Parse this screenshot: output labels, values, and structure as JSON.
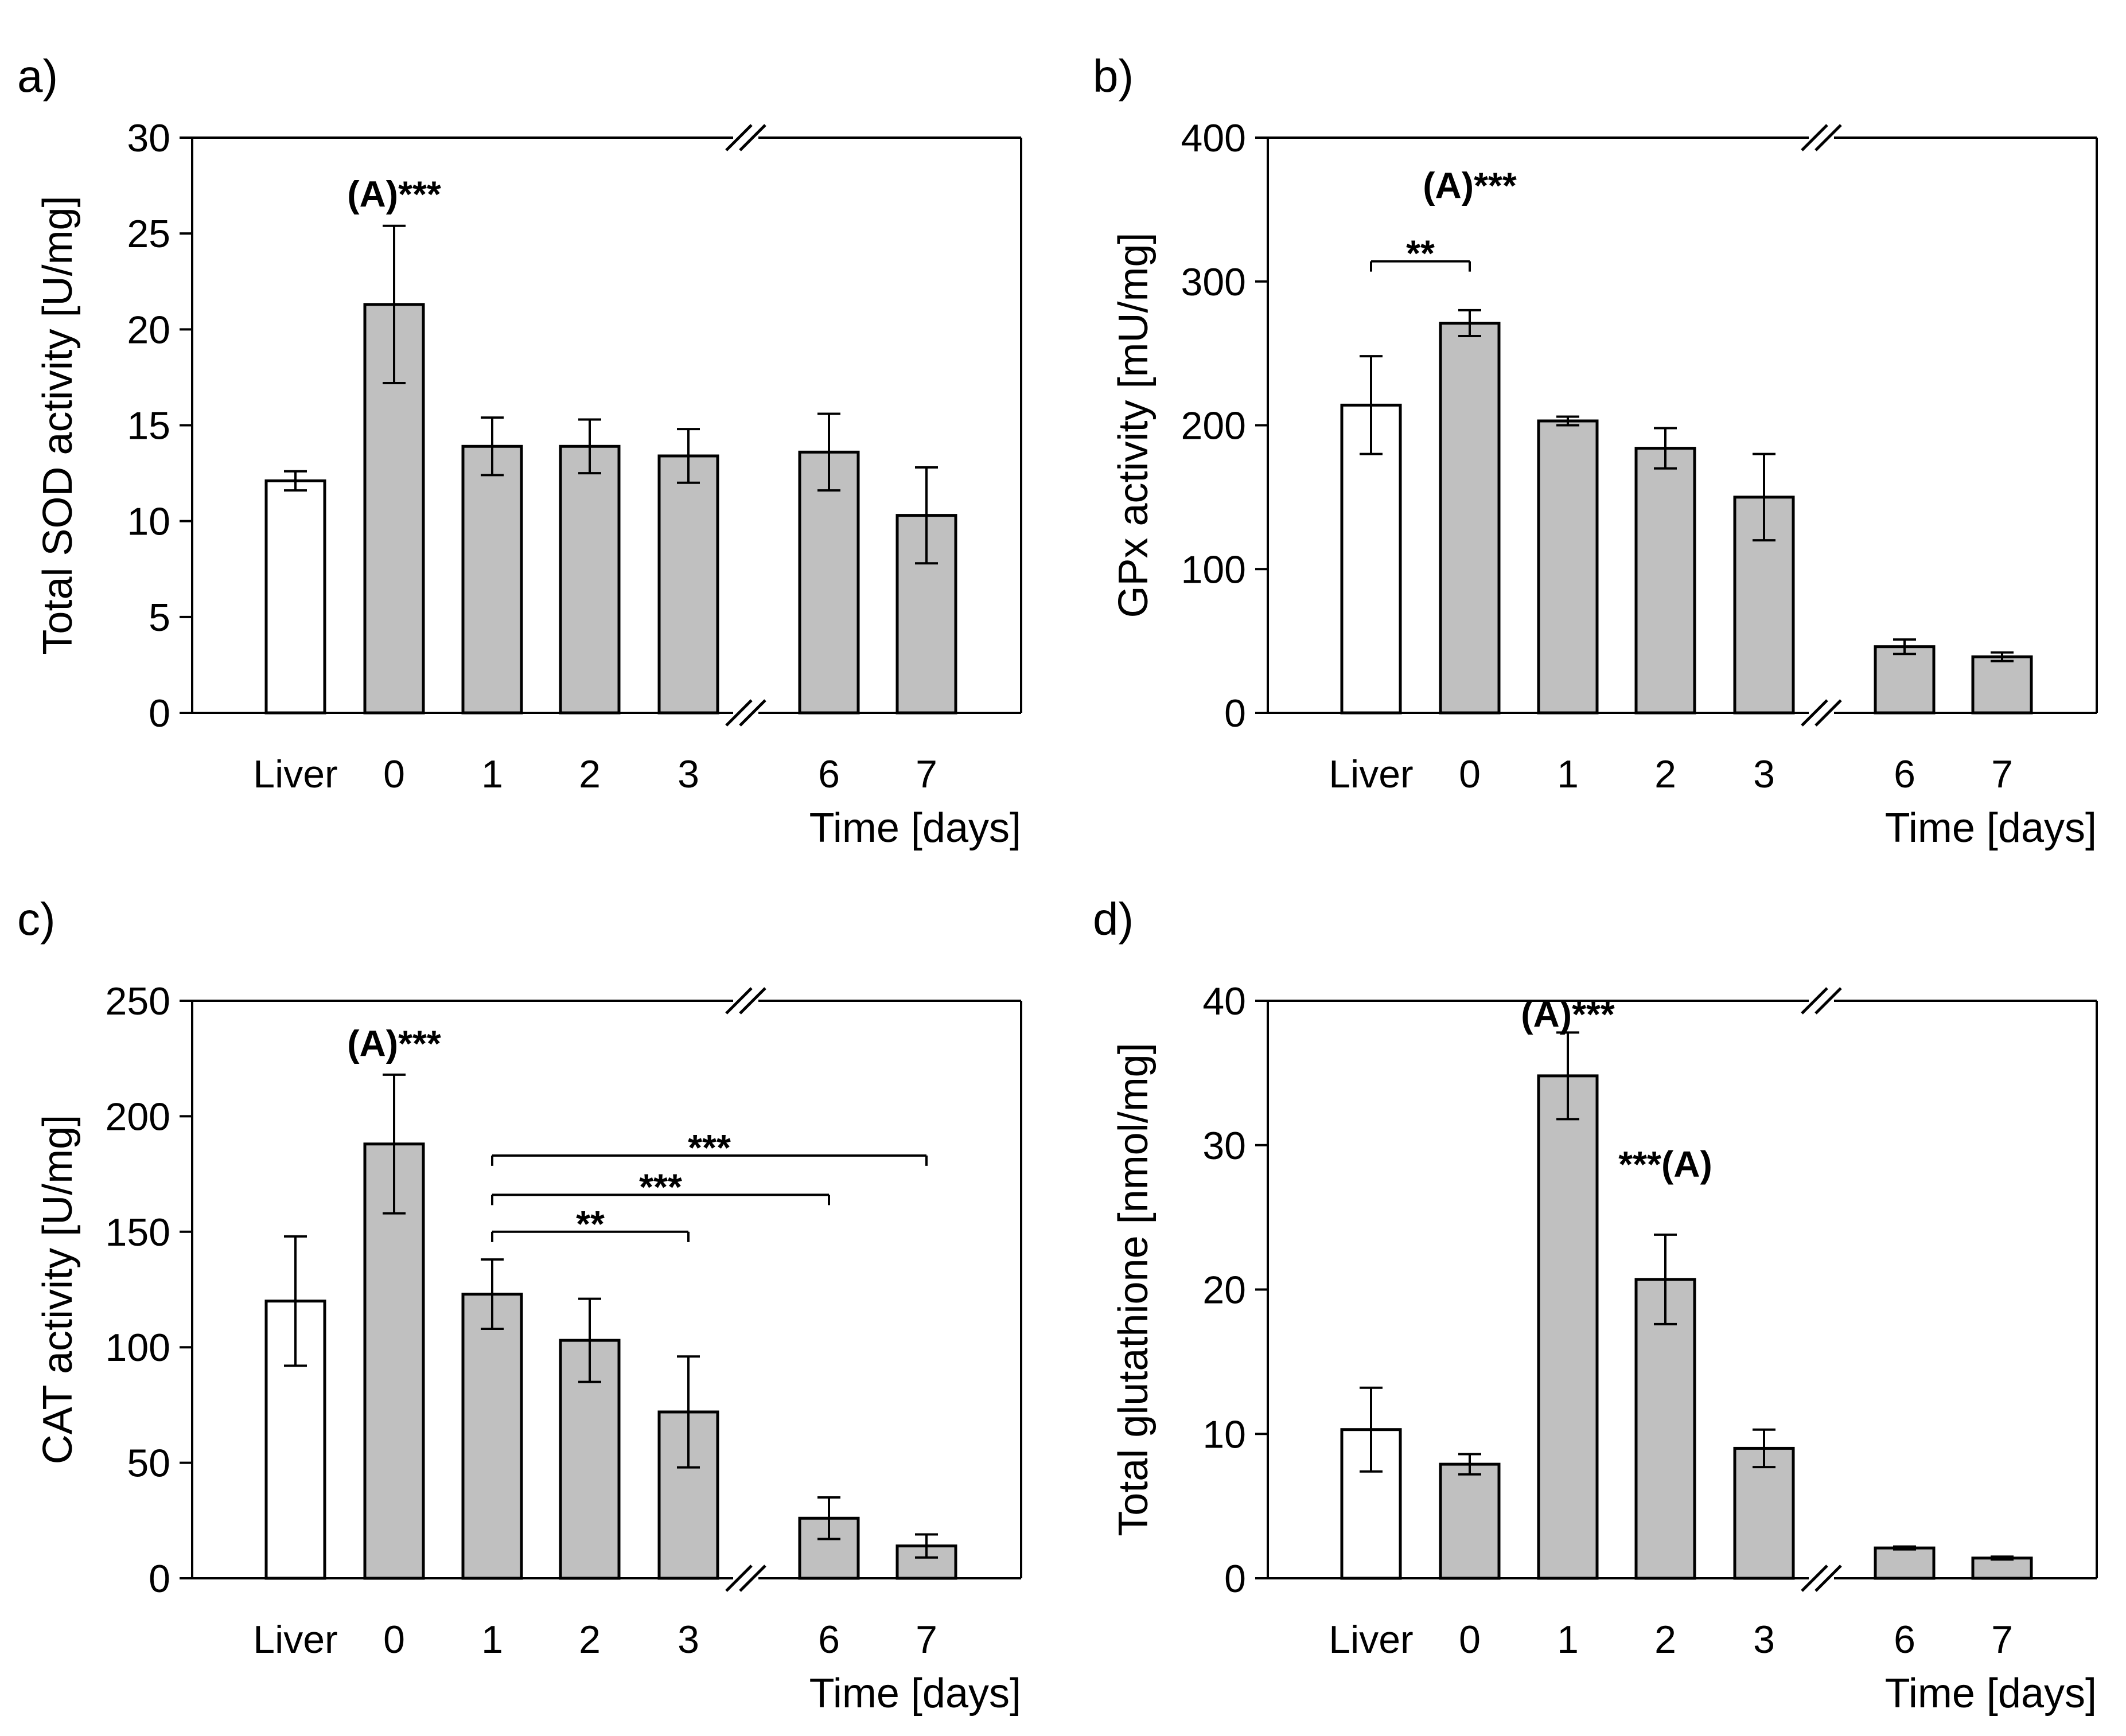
{
  "figure": {
    "colors": {
      "gray_bar": "#c0c0c0",
      "white_bar": "#ffffff",
      "stroke": "#000000"
    }
  },
  "chart_data": [
    {
      "panel": "a)",
      "type": "bar",
      "ylabel": "Total SOD activity [U/mg]",
      "xlabel": "Time [days]",
      "ylim": [
        0,
        30
      ],
      "yticks": [
        0,
        5,
        10,
        15,
        20,
        25,
        30
      ],
      "categories": [
        "Liver",
        "0",
        "1",
        "2",
        "3",
        "6",
        "7"
      ],
      "values": [
        12.1,
        21.3,
        13.9,
        13.9,
        13.4,
        13.6,
        10.3
      ],
      "errors": [
        0.5,
        4.1,
        1.5,
        1.4,
        1.4,
        2.0,
        2.5
      ],
      "bar_colors": [
        "white",
        "gray",
        "gray",
        "gray",
        "gray",
        "gray",
        "gray"
      ],
      "axis_break_after": "3",
      "annotations": [
        {
          "text": "(A)***",
          "category": "0",
          "y": 26.4
        }
      ],
      "brackets": []
    },
    {
      "panel": "b)",
      "type": "bar",
      "ylabel": "GPx activity [mU/mg]",
      "xlabel": "Time [days]",
      "ylim": [
        0,
        400
      ],
      "yticks": [
        0,
        100,
        200,
        300,
        400
      ],
      "categories": [
        "Liver",
        "0",
        "1",
        "2",
        "3",
        "6",
        "7"
      ],
      "values": [
        214,
        271,
        203,
        184,
        150,
        46,
        39
      ],
      "errors": [
        34,
        9,
        3,
        14,
        30,
        5,
        3
      ],
      "bar_colors": [
        "white",
        "gray",
        "gray",
        "gray",
        "gray",
        "gray",
        "gray"
      ],
      "axis_break_after": "3",
      "annotations": [
        {
          "text": "(A)***",
          "category": "0",
          "y": 358
        }
      ],
      "brackets": [
        {
          "from": "Liver",
          "to": "0",
          "y": 314,
          "label": "**"
        }
      ]
    },
    {
      "panel": "c)",
      "type": "bar",
      "ylabel": "CAT activity [U/mg]",
      "xlabel": "Time [days]",
      "ylim": [
        0,
        250
      ],
      "yticks": [
        0,
        50,
        100,
        150,
        200,
        250
      ],
      "categories": [
        "Liver",
        "0",
        "1",
        "2",
        "3",
        "6",
        "7"
      ],
      "values": [
        120,
        188,
        123,
        103,
        72,
        26,
        14
      ],
      "errors": [
        28,
        30,
        15,
        18,
        24,
        9,
        5
      ],
      "bar_colors": [
        "white",
        "gray",
        "gray",
        "gray",
        "gray",
        "gray",
        "gray"
      ],
      "axis_break_after": "3",
      "annotations": [
        {
          "text": "(A)***",
          "category": "0",
          "y": 226
        }
      ],
      "brackets": [
        {
          "from": "1",
          "to": "7",
          "y": 183,
          "label": "***"
        },
        {
          "from": "1",
          "to": "6",
          "y": 166,
          "label": "***"
        },
        {
          "from": "1",
          "to": "3",
          "y": 150,
          "label": "**"
        }
      ]
    },
    {
      "panel": "d)",
      "type": "bar",
      "ylabel": "Total glutathione [nmol/mg]",
      "xlabel": "Time [days]",
      "ylim": [
        0,
        40
      ],
      "yticks": [
        0,
        10,
        20,
        30,
        40
      ],
      "categories": [
        "Liver",
        "0",
        "1",
        "2",
        "3",
        "6",
        "7"
      ],
      "values": [
        10.3,
        7.9,
        34.8,
        20.7,
        9.0,
        2.1,
        1.4
      ],
      "errors": [
        2.9,
        0.7,
        3.0,
        3.1,
        1.3,
        0.1,
        0.1
      ],
      "bar_colors": [
        "white",
        "gray",
        "gray",
        "gray",
        "gray",
        "gray",
        "gray"
      ],
      "axis_break_after": "3",
      "annotations": [
        {
          "text": "(A)***",
          "category": "1",
          "y": 38.2
        },
        {
          "text": "***(A)",
          "category": "2",
          "y": 27.8
        }
      ],
      "brackets": []
    }
  ]
}
